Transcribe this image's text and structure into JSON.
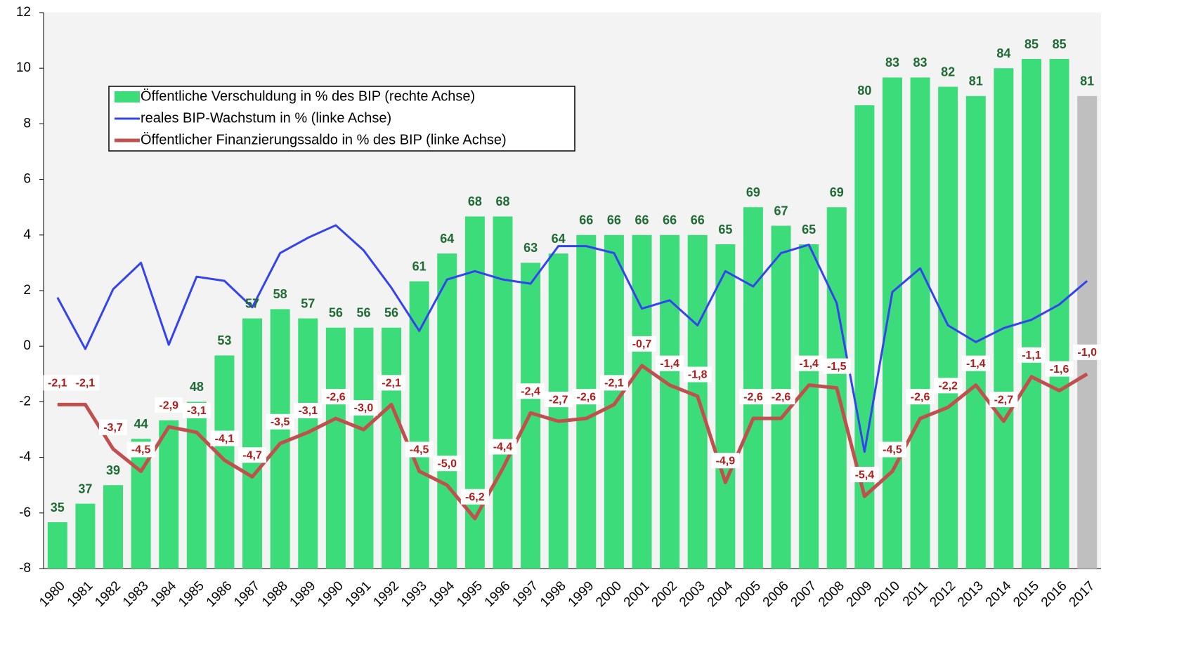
{
  "chart_data": {
    "type": "bar_line",
    "categories": [
      "1980",
      "1981",
      "1982",
      "1983",
      "1984",
      "1985",
      "1986",
      "1987",
      "1988",
      "1989",
      "1990",
      "1991",
      "1992",
      "1993",
      "1994",
      "1995",
      "1996",
      "1997",
      "1998",
      "1999",
      "2000",
      "2001",
      "2002",
      "2003",
      "2004",
      "2005",
      "2006",
      "2007",
      "2008",
      "2009",
      "2010",
      "2011",
      "2012",
      "2013",
      "2014",
      "2015",
      "2016",
      "2017"
    ],
    "ylim": [
      -8,
      12
    ],
    "yticks": [
      -8,
      -6,
      -4,
      -2,
      0,
      2,
      4,
      6,
      8,
      10,
      12
    ],
    "y2lim": [
      30,
      90
    ],
    "legend": "upper left",
    "series": [
      {
        "name": "Öffentliche Verschuldung in % des BIP (rechte Achse)",
        "type": "bar",
        "axis": "y2",
        "color": "#3ddc7a",
        "colors": [
          "#3ddc7a",
          "#3ddc7a",
          "#3ddc7a",
          "#3ddc7a",
          "#3ddc7a",
          "#3ddc7a",
          "#3ddc7a",
          "#3ddc7a",
          "#3ddc7a",
          "#3ddc7a",
          "#3ddc7a",
          "#3ddc7a",
          "#3ddc7a",
          "#3ddc7a",
          "#3ddc7a",
          "#3ddc7a",
          "#3ddc7a",
          "#3ddc7a",
          "#3ddc7a",
          "#3ddc7a",
          "#3ddc7a",
          "#3ddc7a",
          "#3ddc7a",
          "#3ddc7a",
          "#3ddc7a",
          "#3ddc7a",
          "#3ddc7a",
          "#3ddc7a",
          "#3ddc7a",
          "#3ddc7a",
          "#3ddc7a",
          "#3ddc7a",
          "#3ddc7a",
          "#3ddc7a",
          "#3ddc7a",
          "#3ddc7a",
          "#3ddc7a",
          "#bfbfbf"
        ],
        "values": [
          35,
          37,
          39,
          44,
          46,
          48,
          53,
          57,
          58,
          57,
          56,
          56,
          56,
          61,
          64,
          68,
          68,
          63,
          64,
          66,
          66,
          66,
          66,
          66,
          65,
          69,
          67,
          65,
          69,
          80,
          83,
          83,
          82,
          81,
          84,
          85,
          85,
          81
        ],
        "value_labels": [
          "35",
          "37",
          "39",
          "44",
          null,
          "48",
          "53",
          "57",
          "58",
          "57",
          "56",
          "56",
          "56",
          "61",
          "64",
          "68",
          "68",
          "63",
          "64",
          "66",
          "66",
          "66",
          "66",
          "66",
          "65",
          "69",
          "67",
          "65",
          "69",
          "80",
          "83",
          "83",
          "82",
          "81",
          "84",
          "85",
          "85",
          "81"
        ]
      },
      {
        "name": "reales BIP-Wachstum in % (linke Achse)",
        "type": "line",
        "color": "#3344ee",
        "values": [
          1.75,
          -0.1,
          2.05,
          3.0,
          0.05,
          2.5,
          2.35,
          1.4,
          3.35,
          3.9,
          4.35,
          3.45,
          2.1,
          0.55,
          2.4,
          2.7,
          2.4,
          2.25,
          3.6,
          3.6,
          3.35,
          1.35,
          1.65,
          0.75,
          2.7,
          2.15,
          3.35,
          3.65,
          1.55,
          -3.8,
          1.95,
          2.8,
          0.75,
          0.15,
          0.65,
          0.95,
          1.5,
          2.35
        ]
      },
      {
        "name": "Öffentlicher Finanzierungssaldo in % des BIP (linke Achse)",
        "type": "line",
        "color": "#c0504d",
        "values": [
          -2.1,
          -2.1,
          -3.7,
          -4.5,
          -2.9,
          -3.1,
          -4.1,
          -4.7,
          -3.5,
          -3.1,
          -2.6,
          -3.0,
          -2.1,
          -4.5,
          -5.0,
          -6.2,
          -4.4,
          -2.4,
          -2.7,
          -2.6,
          -2.1,
          -0.7,
          -1.4,
          -1.8,
          -4.9,
          -2.6,
          -2.6,
          -1.4,
          -1.5,
          -5.4,
          -4.5,
          -2.6,
          -2.2,
          -1.4,
          -2.7,
          -1.1,
          -1.6,
          -1.0
        ],
        "value_labels": [
          "-2,1",
          "-2,1",
          "-3,7",
          "-4,5",
          "-2,9",
          "-3,1",
          "-4,1",
          "-4,7",
          "-3,5",
          "-3,1",
          "-2,6",
          "-3,0",
          "-2,1",
          "-4,5",
          "-5,0",
          "-6,2",
          "-4,4",
          "-2,4",
          "-2,7",
          "-2,6",
          "-2,1",
          "-0,7",
          "-1,4",
          "-1,8",
          "-4,9",
          "-2,6",
          "-2,6",
          "-1,4",
          "-1,5",
          "-5,4",
          "-4,5",
          "-2,6",
          "-2,2",
          "-1,4",
          "-2,7",
          "-1,1",
          "-1,6",
          "-1,0"
        ]
      }
    ]
  }
}
